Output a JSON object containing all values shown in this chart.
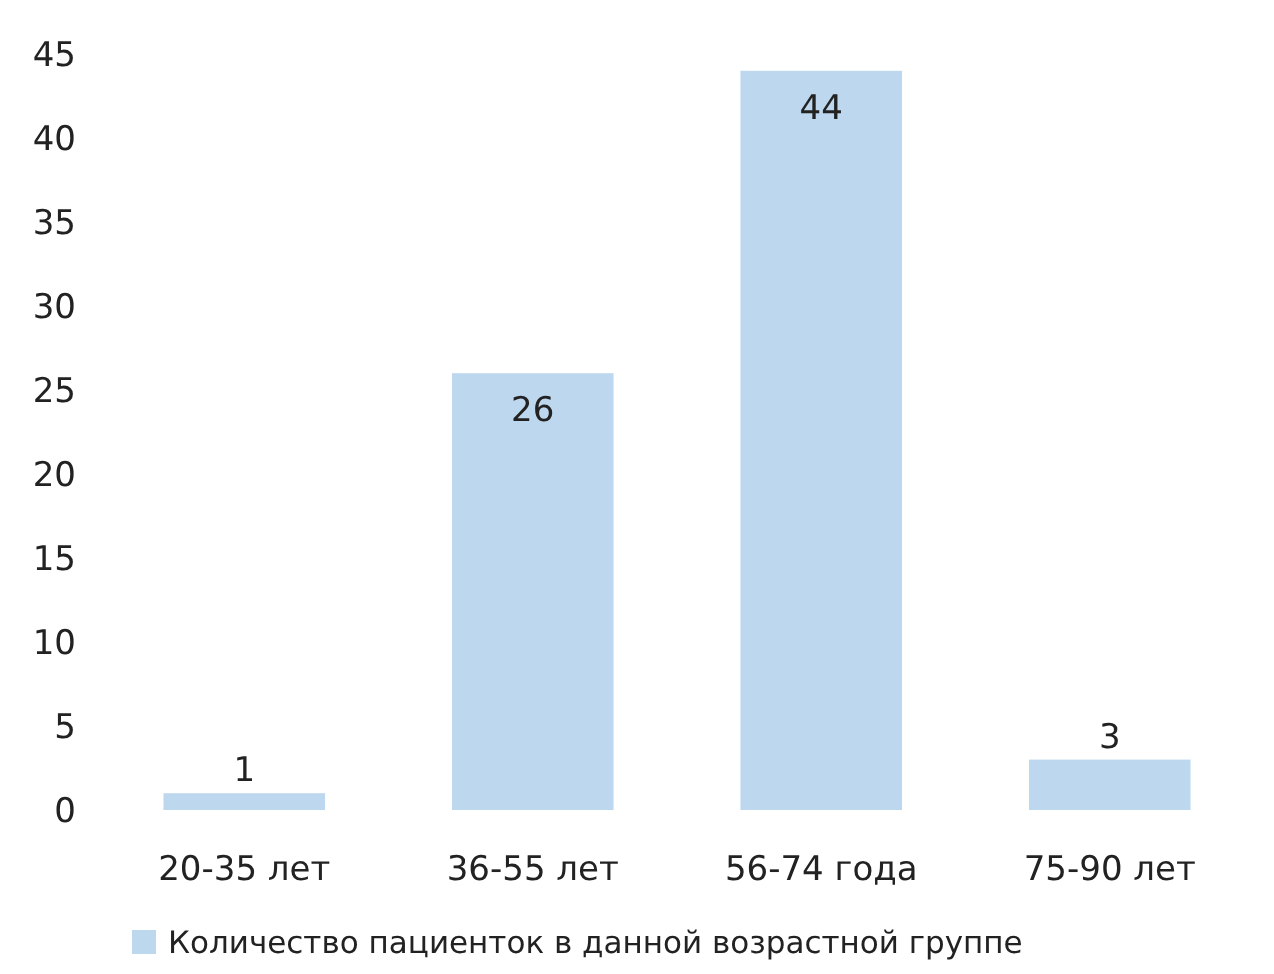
{
  "chart_data": {
    "type": "bar",
    "categories": [
      "20-35 лет",
      "36-55 лет",
      "56-74 года",
      "75-90 лет"
    ],
    "series": [
      {
        "name": "Количество пациенток в данной возрастной группе",
        "color": "#bdd7ee",
        "values": [
          1,
          26,
          44,
          3
        ]
      }
    ],
    "ylim": [
      0,
      45
    ],
    "yticks": [
      0,
      5,
      10,
      15,
      20,
      25,
      30,
      35,
      40,
      45
    ],
    "grid": false,
    "legend": "bottom",
    "data_labels": true
  }
}
